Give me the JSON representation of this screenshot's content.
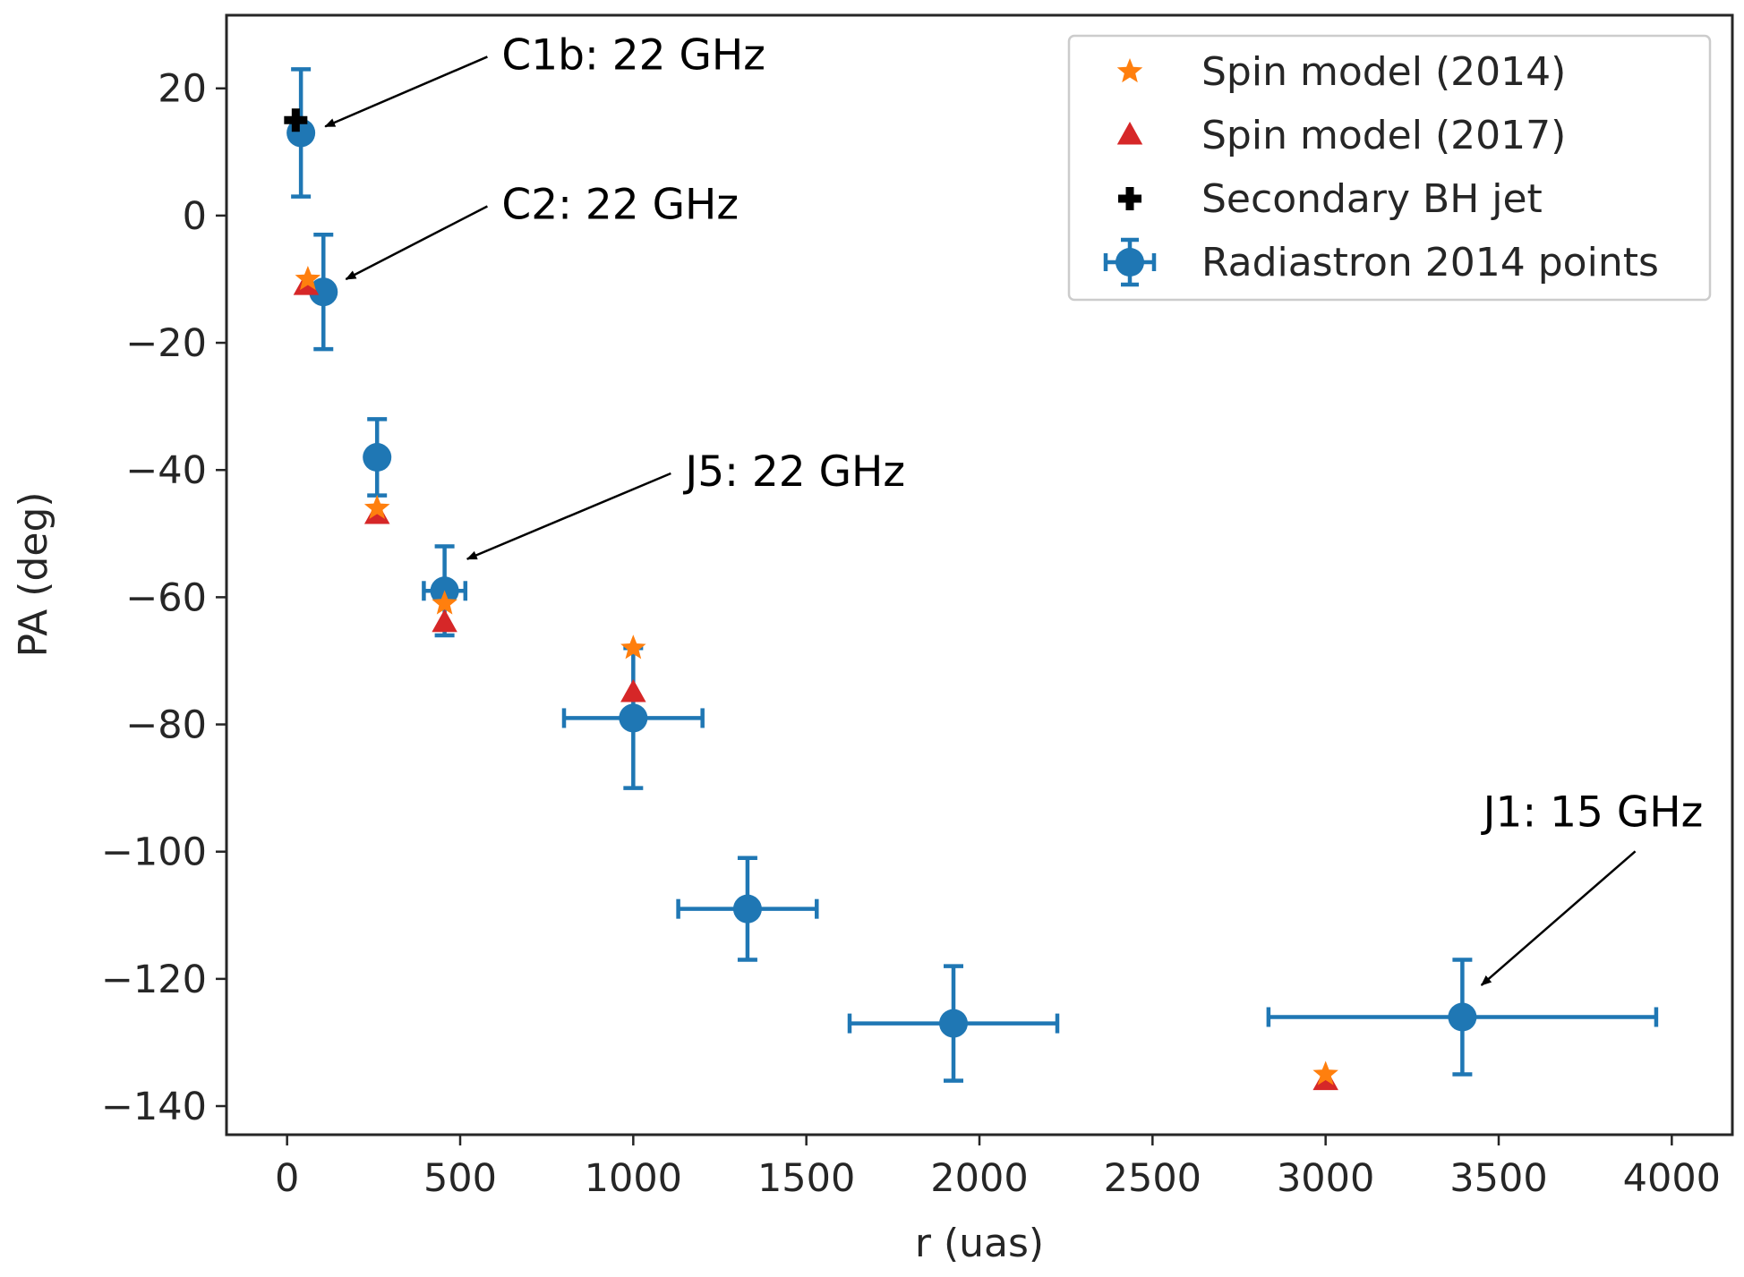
{
  "chart_data": {
    "type": "scatter",
    "title": "",
    "xlabel": "r (uas)",
    "ylabel": "PA (deg)",
    "xlim": [
      -175,
      4175
    ],
    "ylim": [
      -144.5,
      31.5
    ],
    "xticks": [
      0,
      500,
      1000,
      1500,
      2000,
      2500,
      3000,
      3500,
      4000
    ],
    "xtick_labels": [
      "0",
      "500",
      "1000",
      "1500",
      "2000",
      "2500",
      "3000",
      "3500",
      "4000"
    ],
    "yticks": [
      20,
      0,
      -20,
      -40,
      -60,
      -80,
      -100,
      -120,
      -140
    ],
    "ytick_labels": [
      "20",
      "0",
      "−20",
      "−40",
      "−60",
      "−80",
      "−100",
      "−120",
      "−140"
    ],
    "grid": false,
    "legend_position": "top-right",
    "series": [
      {
        "name": "Spin model (2014)",
        "marker": "star",
        "color": "#ff7f0e",
        "points": [
          {
            "x": 60,
            "y": -10
          },
          {
            "x": 260,
            "y": -46
          },
          {
            "x": 455,
            "y": -61
          },
          {
            "x": 1000,
            "y": -68
          },
          {
            "x": 3000,
            "y": -135
          }
        ]
      },
      {
        "name": "Spin model (2017)",
        "marker": "triangle",
        "color": "#d62728",
        "points": [
          {
            "x": 55,
            "y": -11
          },
          {
            "x": 260,
            "y": -47
          },
          {
            "x": 455,
            "y": -64
          },
          {
            "x": 1000,
            "y": -75
          },
          {
            "x": 3000,
            "y": -136
          }
        ]
      },
      {
        "name": "Secondary BH jet",
        "marker": "plus",
        "color": "#000000",
        "points": [
          {
            "x": 25,
            "y": 15
          }
        ]
      },
      {
        "name": "Radiastron 2014 points",
        "marker": "errorbar",
        "color": "#1f77b4",
        "points": [
          {
            "x": 40,
            "y": 13,
            "yerr": 10,
            "xerr": 0
          },
          {
            "x": 105,
            "y": -12,
            "yerr": 9,
            "xerr": 0
          },
          {
            "x": 260,
            "y": -38,
            "yerr": 6,
            "xerr": 0
          },
          {
            "x": 455,
            "y": -59,
            "yerr": 7,
            "xerr": 60
          },
          {
            "x": 1000,
            "y": -79,
            "yerr": 11,
            "xerr": 200
          },
          {
            "x": 1330,
            "y": -109,
            "yerr": 8,
            "xerr": 200
          },
          {
            "x": 1925,
            "y": -127,
            "yerr": 9,
            "xerr": 300
          },
          {
            "x": 3395,
            "y": -126,
            "yerr": 9,
            "xerr": 560
          }
        ]
      }
    ],
    "annotations": [
      {
        "text": "C1b: 22 GHz",
        "point": [
          110,
          14
        ],
        "text_at": [
          620,
          23
        ]
      },
      {
        "text": "C2: 22 GHz",
        "point": [
          170,
          -10
        ],
        "text_at": [
          620,
          -0.5
        ]
      },
      {
        "text": "J5: 22 GHz",
        "point": [
          520,
          -54
        ],
        "text_at": [
          1150,
          -42.5
        ]
      },
      {
        "text": "J1: 15 GHz",
        "point": [
          3450,
          -121
        ],
        "text_at": [
          3455,
          -96
        ]
      }
    ]
  }
}
